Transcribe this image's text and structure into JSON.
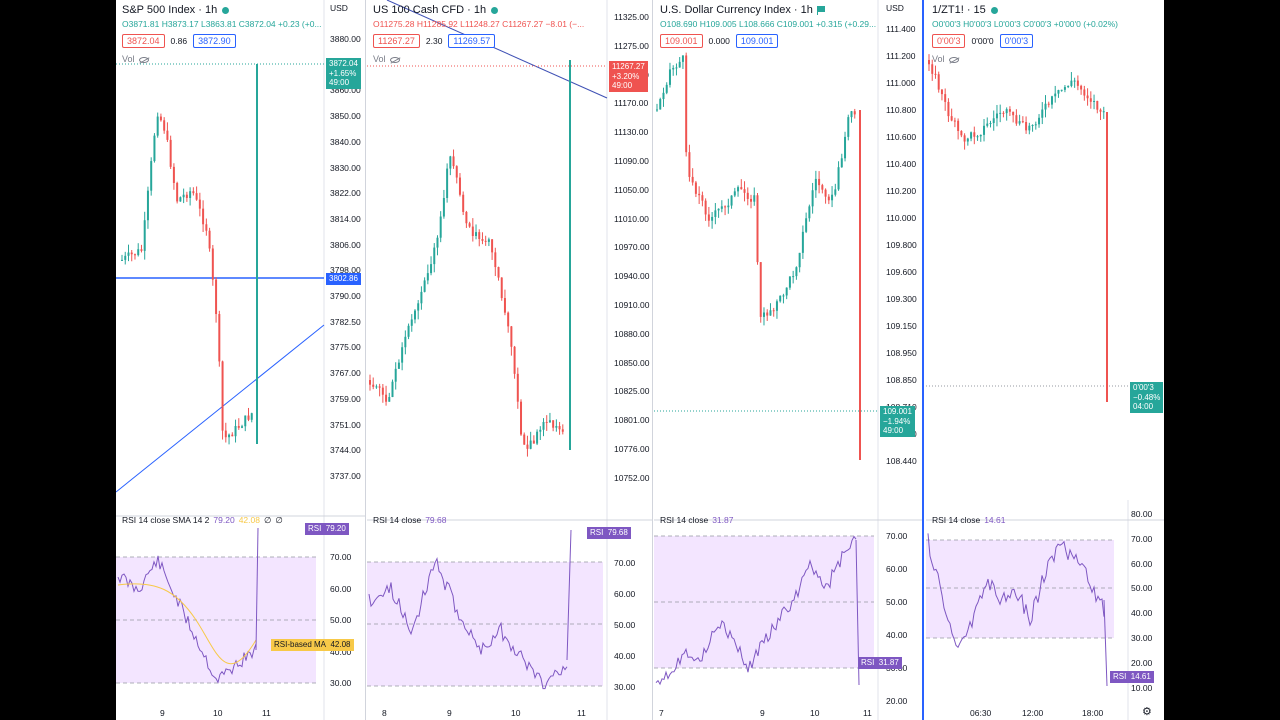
{
  "panels": [
    {
      "title": "S&P 500 Index · 1h",
      "ohlc": {
        "o": "O3871.81",
        "h": "H3873.17",
        "l": "L3863.81",
        "c": "C3872.04",
        "chg": "+0.23 (+0..."
      },
      "bid": "3872.04",
      "spread": "0.86",
      "ask": "3872.90",
      "vol": "Vol",
      "currency": "USD",
      "axis": [
        "3880.00",
        "3870.00",
        "3860.00",
        "3850.00",
        "3840.00",
        "3830.00",
        "3822.00",
        "3814.00",
        "3806.00",
        "3798.00",
        "3790.00",
        "3782.50",
        "3775.00",
        "3767.00",
        "3759.00",
        "3751.00",
        "3744.00",
        "3737.00"
      ],
      "price_tag": [
        "3872.04",
        "+1.65%",
        "49:00"
      ],
      "line_tag": "3802.86",
      "rsi_label": "RSI 14 close SMA 14 2",
      "rsi_values": [
        "79.20",
        "42.08",
        "∅",
        "∅"
      ],
      "rsi_axis": [
        "70.00",
        "60.00",
        "50.00",
        "40.00",
        "30.00"
      ],
      "rsi_tag": [
        "RSI",
        "79.20"
      ],
      "ma_tag": [
        "RSI-based MA",
        "42.08"
      ],
      "xlabels": [
        "9",
        "10",
        "11"
      ]
    },
    {
      "title": "US 100 Cash CFD · 1h",
      "ohlc": {
        "o": "O11275.28",
        "h": "H11285.92",
        "l": "L11248.27",
        "c": "C11267.27",
        "chg": "−8.01 (−..."
      },
      "bid": "11267.27",
      "spread": "2.30",
      "ask": "11269.57",
      "vol": "Vol",
      "axis": [
        "11325.00",
        "11275.00",
        "11210.00",
        "11170.00",
        "11130.00",
        "11090.00",
        "11050.00",
        "11010.00",
        "10970.00",
        "10940.00",
        "10910.00",
        "10880.00",
        "10850.00",
        "10825.00",
        "10801.00",
        "10776.00",
        "10752.00"
      ],
      "price_tag": [
        "11267.27",
        "+3.20%",
        "49:00"
      ],
      "rsi_label": "RSI 14 close",
      "rsi_values": [
        "79.68"
      ],
      "rsi_axis": [
        "70.00",
        "60.00",
        "50.00",
        "40.00",
        "30.00"
      ],
      "rsi_tag": [
        "RSI",
        "79.68"
      ],
      "xlabels": [
        "8",
        "9",
        "10",
        "11"
      ]
    },
    {
      "title": "U.S. Dollar Currency Index · 1h",
      "ohlc": {
        "o": "O108.690",
        "h": "H109.005",
        "l": "L108.666",
        "c": "C109.001",
        "chg": "+0.315 (+0.29..."
      },
      "bid": "109.001",
      "spread": "0.000",
      "ask": "109.001",
      "vol": "",
      "currency": "USD",
      "axis": [
        "111.400",
        "111.200",
        "111.000",
        "110.800",
        "110.600",
        "110.400",
        "110.200",
        "110.000",
        "109.800",
        "109.600",
        "109.300",
        "109.150",
        "108.950",
        "108.850",
        "108.710",
        "108.570",
        "108.440"
      ],
      "price_tag": [
        "109.001",
        "−1.94%",
        "49:00"
      ],
      "rsi_label": "RSI 14 close",
      "rsi_values": [
        "31.87"
      ],
      "rsi_axis": [
        "70.00",
        "60.00",
        "50.00",
        "40.00",
        "30.00",
        "20.00"
      ],
      "rsi_tag": [
        "RSI",
        "31.87"
      ],
      "xlabels": [
        "7",
        "9",
        "10",
        "11"
      ]
    },
    {
      "title": "1/ZT1! · 15",
      "ohlc": {
        "o": "O0'00'3",
        "h": "H0'00'3",
        "l": "L0'00'3",
        "c": "C0'00'3",
        "chg": "+0'00'0 (+0.02%)"
      },
      "bid": "0'00'3",
      "spread": "0'00'0",
      "ask": "0'00'3",
      "vol": "Vol",
      "price_tag": [
        "0'00'3",
        "−0.48%",
        "04:00"
      ],
      "rsi_label": "RSI 14 close",
      "rsi_values": [
        "14.61"
      ],
      "rsi_axis": [
        "80.00",
        "70.00",
        "60.00",
        "50.00",
        "40.00",
        "30.00",
        "20.00",
        "10.00"
      ],
      "rsi_tag": [
        "RSI",
        "14.61"
      ],
      "xlabels": [
        "06:30",
        "12:00",
        "18:00"
      ]
    }
  ],
  "colors": {
    "up": "#26a69a",
    "down": "#ef5350",
    "rsi": "#7e57c2",
    "ma": "#f7c948",
    "band": "#f3e5ff",
    "line": "#2962ff"
  },
  "icons": {
    "settings": "gear-icon",
    "visibility": "eye-icon"
  }
}
